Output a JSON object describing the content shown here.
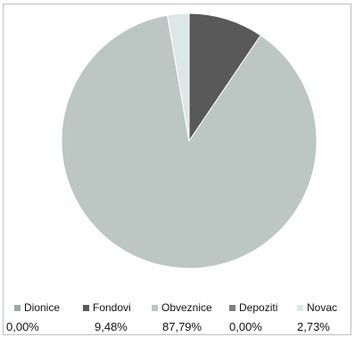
{
  "chart_data": {
    "type": "pie",
    "title": "",
    "slices": [
      {
        "name": "Dionice",
        "value": 0.0,
        "label": "0,00%",
        "color": "#9da7a5"
      },
      {
        "name": "Fondovi",
        "value": 9.48,
        "label": "9,48%",
        "color": "#595959"
      },
      {
        "name": "Obveznice",
        "value": 87.79,
        "label": "87,79%",
        "color": "#bcc6c3"
      },
      {
        "name": "Depoziti",
        "value": 0.0,
        "label": "0,00%",
        "color": "#7f7f7f"
      },
      {
        "name": "Novac",
        "value": 2.73,
        "label": "2,73%",
        "color": "#dde8e6"
      }
    ],
    "legend_position": "bottom"
  }
}
